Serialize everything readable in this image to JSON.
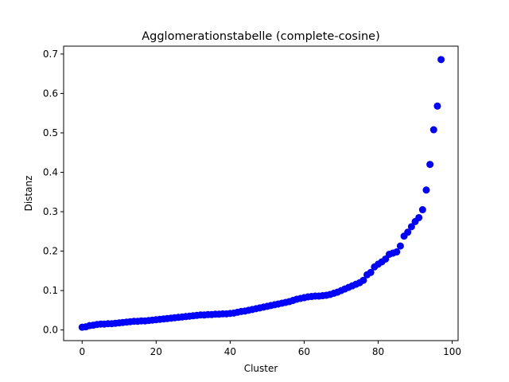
{
  "chart_data": {
    "type": "scatter",
    "title": "Agglomerationstabelle (complete-cosine)",
    "xlabel": "Cluster",
    "ylabel": "Distanz",
    "xlim": [
      -5,
      101.6
    ],
    "ylim": [
      -0.027,
      0.72
    ],
    "xticks": [
      0,
      20,
      40,
      60,
      80,
      100
    ],
    "xtick_labels": [
      "0",
      "20",
      "40",
      "60",
      "80",
      "100"
    ],
    "yticks": [
      0.0,
      0.1,
      0.2,
      0.3,
      0.4,
      0.5,
      0.6,
      0.7
    ],
    "ytick_labels": [
      "0.0",
      "0.1",
      "0.2",
      "0.3",
      "0.4",
      "0.5",
      "0.6",
      "0.7"
    ],
    "grid": false,
    "marker_color": "#0000ff",
    "series": [
      {
        "x": [
          0,
          1,
          2,
          3,
          4,
          5,
          6,
          7,
          8,
          9,
          10,
          11,
          12,
          13,
          14,
          15,
          16,
          17,
          18,
          19,
          20,
          21,
          22,
          23,
          24,
          25,
          26,
          27,
          28,
          29,
          30,
          31,
          32,
          33,
          34,
          35,
          36,
          37,
          38,
          39,
          40,
          41,
          42,
          43,
          44,
          45,
          46,
          47,
          48,
          49,
          50,
          51,
          52,
          53,
          54,
          55,
          56,
          57,
          58,
          59,
          60,
          61,
          62,
          63,
          64,
          65,
          66,
          67,
          68,
          69,
          70,
          71,
          72,
          73,
          74,
          75,
          76,
          77,
          78,
          79,
          80,
          81,
          82,
          83,
          84,
          85,
          86,
          87,
          88,
          89,
          90,
          91,
          92,
          93,
          94,
          95,
          96,
          97
        ],
        "values": [
          0.007,
          0.008,
          0.011,
          0.012,
          0.014,
          0.015,
          0.015,
          0.016,
          0.016,
          0.017,
          0.018,
          0.019,
          0.02,
          0.021,
          0.022,
          0.022,
          0.023,
          0.023,
          0.024,
          0.025,
          0.026,
          0.027,
          0.028,
          0.029,
          0.03,
          0.031,
          0.032,
          0.033,
          0.034,
          0.035,
          0.036,
          0.037,
          0.038,
          0.038,
          0.039,
          0.039,
          0.04,
          0.04,
          0.041,
          0.041,
          0.042,
          0.043,
          0.045,
          0.047,
          0.048,
          0.05,
          0.052,
          0.054,
          0.056,
          0.058,
          0.06,
          0.062,
          0.064,
          0.066,
          0.068,
          0.07,
          0.072,
          0.075,
          0.078,
          0.08,
          0.082,
          0.084,
          0.085,
          0.086,
          0.086,
          0.087,
          0.088,
          0.09,
          0.093,
          0.096,
          0.1,
          0.104,
          0.108,
          0.112,
          0.116,
          0.12,
          0.126,
          0.14,
          0.146,
          0.16,
          0.167,
          0.173,
          0.18,
          0.192,
          0.195,
          0.198,
          0.213,
          0.238,
          0.248,
          0.262,
          0.275,
          0.285,
          0.305,
          0.355,
          0.42,
          0.508,
          0.568,
          0.686
        ]
      }
    ]
  }
}
